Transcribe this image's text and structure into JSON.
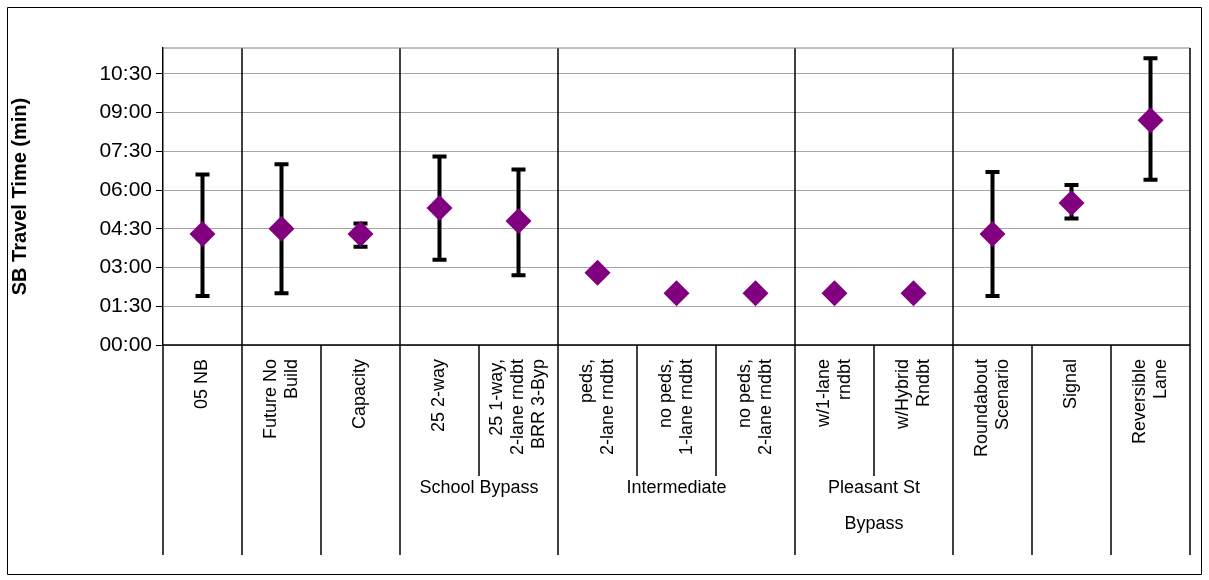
{
  "chart_data": {
    "type": "scatter",
    "ylabel": "SB Travel Time (min)",
    "categories": [
      "05 NB",
      "Future No\nBuild",
      "Capacity",
      "25 2-way",
      "25 1-way,\n2-lane rndbt\nBRR 3-Byp",
      "peds,\n2-lane rndbt",
      "no peds,\n1-lane rndbt",
      "no peds,\n2-lane rndbt",
      "w/1-lane\nrndbt",
      "w/Hybrid\nRndbt",
      "Roundabout\nScenario",
      "Signal",
      "Reversible\nLane"
    ],
    "series": [
      {
        "color": "#800080",
        "values": [
          4.3,
          4.5,
          4.3,
          5.3,
          4.8,
          2.8,
          2.0,
          2.0,
          2.0,
          2.0,
          4.3,
          5.5,
          8.7
        ],
        "errors": [
          [
            1.9,
            6.6
          ],
          [
            2.0,
            7.0
          ],
          [
            3.8,
            4.7
          ],
          [
            3.3,
            7.3
          ],
          [
            2.7,
            6.8
          ],
          null,
          null,
          null,
          null,
          null,
          [
            1.9,
            6.7
          ],
          [
            4.9,
            6.2
          ],
          [
            6.4,
            11.1
          ]
        ]
      }
    ],
    "ylim": [
      0,
      11.5
    ],
    "yticks": [
      {
        "value": 0,
        "label": "00:00"
      },
      {
        "value": 1.5,
        "label": "01:30"
      },
      {
        "value": 3,
        "label": "03:00"
      },
      {
        "value": 4.5,
        "label": "04:30"
      },
      {
        "value": 6,
        "label": "06:00"
      },
      {
        "value": 7.5,
        "label": "07:30"
      },
      {
        "value": 9,
        "label": "09:00"
      },
      {
        "value": 10.5,
        "label": "10:30"
      }
    ],
    "grid": "y",
    "marker": "diamond",
    "annotations": [
      "School Bypass",
      "Intermediate",
      "Pleasant St Bypass"
    ]
  }
}
